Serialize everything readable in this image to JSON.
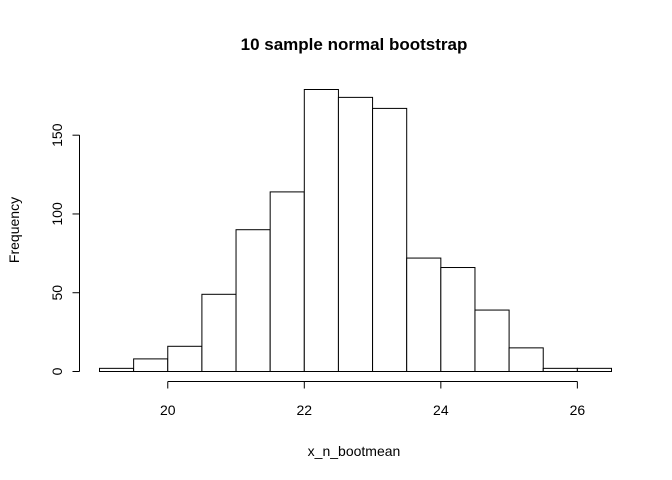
{
  "chart_data": {
    "type": "bar",
    "title": "10 sample normal bootstrap",
    "xlabel": "x_n_bootmean",
    "ylabel": "Frequency",
    "bin_edges": [
      19,
      19.5,
      20,
      20.5,
      21,
      21.5,
      22,
      22.5,
      23,
      23.5,
      24,
      24.5,
      25,
      25.5,
      26,
      26.5
    ],
    "values": [
      2,
      8,
      16,
      49,
      90,
      114,
      179,
      174,
      167,
      72,
      66,
      39,
      15,
      2,
      2
    ],
    "xlim": [
      19,
      26.5
    ],
    "ylim": [
      0,
      179
    ],
    "x_ticks": [
      20,
      22,
      24,
      26
    ],
    "x_tick_labels": [
      "20",
      "22",
      "24",
      "26"
    ],
    "y_ticks": [
      0,
      50,
      100,
      150
    ],
    "y_tick_labels": [
      "0",
      "50",
      "100",
      "150"
    ],
    "grid": false,
    "colors": {
      "bar_fill": "#ffffff",
      "bar_stroke": "#000000",
      "axis": "#000000"
    }
  }
}
